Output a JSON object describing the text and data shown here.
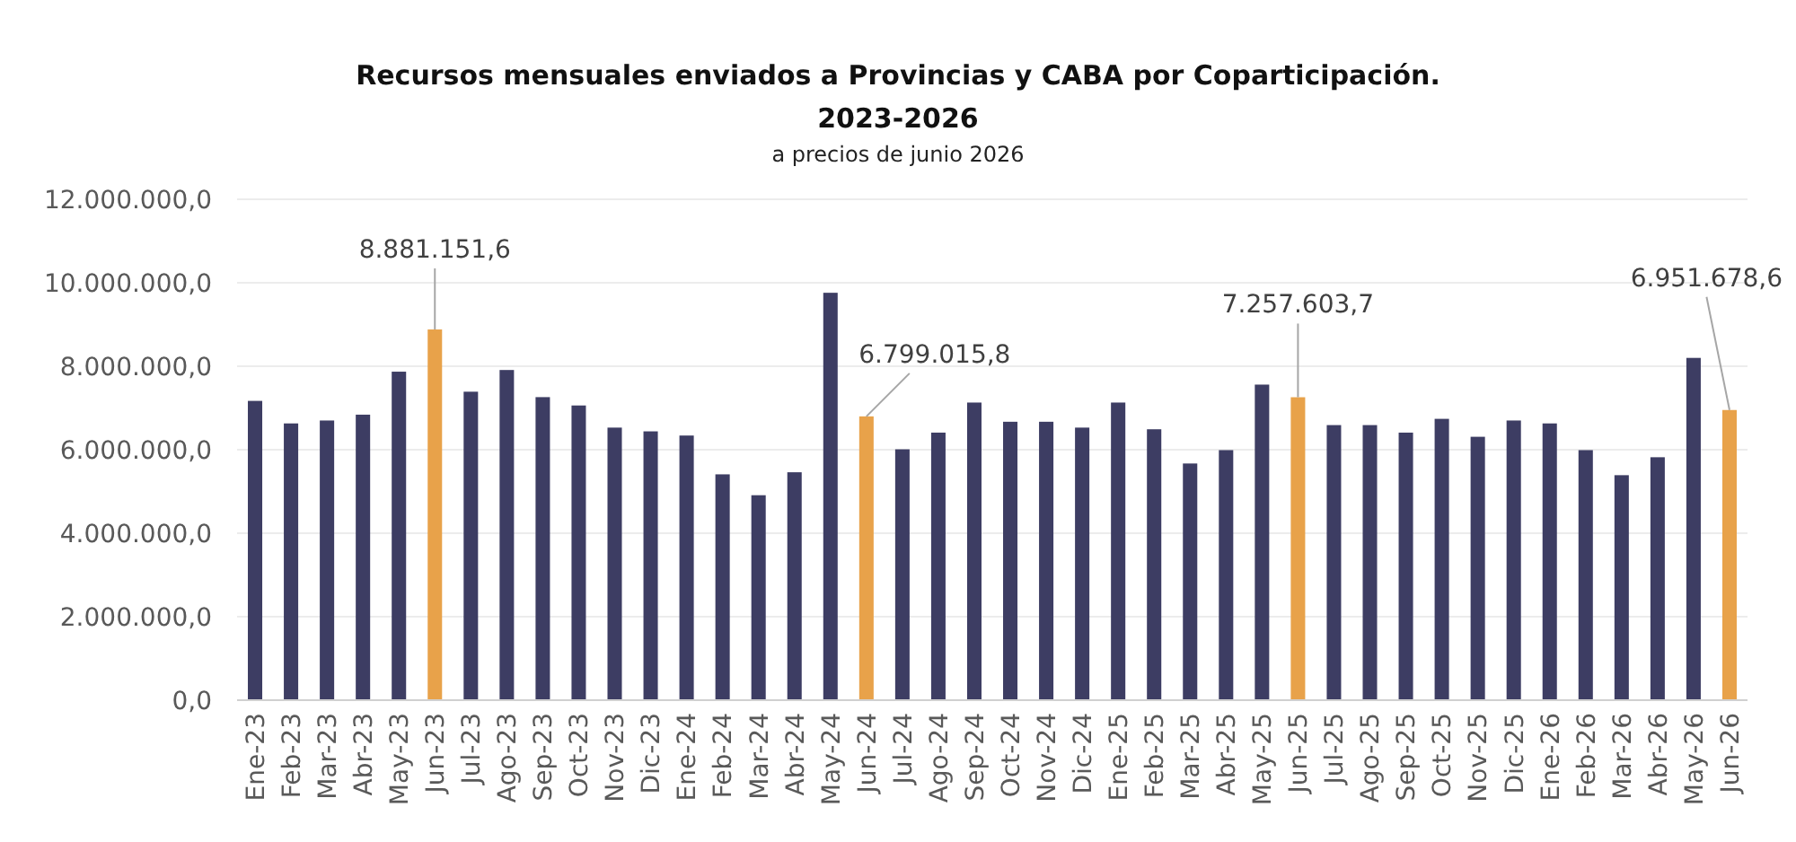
{
  "chart_data": {
    "type": "bar",
    "title": "Recursos mensuales enviados a Provincias y CABA por Coparticipación.\n2023-2026",
    "subtitle": "a precios de junio 2026",
    "categories": [
      "Ene-23",
      "Feb-23",
      "Mar-23",
      "Abr-23",
      "May-23",
      "Jun-23",
      "Jul-23",
      "Ago-23",
      "Sep-23",
      "Oct-23",
      "Nov-23",
      "Dic-23",
      "Ene-24",
      "Feb-24",
      "Mar-24",
      "Abr-24",
      "May-24",
      "Jun-24",
      "Jul-24",
      "Ago-24",
      "Sep-24",
      "Oct-24",
      "Nov-24",
      "Dic-24",
      "Ene-25",
      "Feb-25",
      "Mar-25",
      "Abr-25",
      "May-25",
      "Jun-25",
      "Jul-25",
      "Ago-25",
      "Sep-25",
      "Oct-25",
      "Nov-25",
      "Dic-25",
      "Ene-26",
      "Feb-26",
      "Mar-26",
      "Abr-26",
      "May-26",
      "Jun-26"
    ],
    "values": [
      7170000,
      6630000,
      6700000,
      6840000,
      7870000,
      8881151.6,
      7390000,
      7910000,
      7260000,
      7060000,
      6530000,
      6440000,
      6340000,
      5410000,
      4910000,
      5460000,
      9760000,
      6799015.8,
      6010000,
      6410000,
      7130000,
      6670000,
      6670000,
      6530000,
      7130000,
      6490000,
      5670000,
      5990000,
      7560000,
      7257603.7,
      6590000,
      6590000,
      6410000,
      6740000,
      6310000,
      6700000,
      6630000,
      5990000,
      5390000,
      5820000,
      8200000,
      6951678.6
    ],
    "colors": [
      "#3d3d63",
      "#3d3d63",
      "#3d3d63",
      "#3d3d63",
      "#3d3d63",
      "#e8a24a",
      "#3d3d63",
      "#3d3d63",
      "#3d3d63",
      "#3d3d63",
      "#3d3d63",
      "#3d3d63",
      "#3d3d63",
      "#3d3d63",
      "#3d3d63",
      "#3d3d63",
      "#3d3d63",
      "#e8a24a",
      "#3d3d63",
      "#3d3d63",
      "#3d3d63",
      "#3d3d63",
      "#3d3d63",
      "#3d3d63",
      "#3d3d63",
      "#3d3d63",
      "#3d3d63",
      "#3d3d63",
      "#3d3d63",
      "#e8a24a",
      "#3d3d63",
      "#3d3d63",
      "#3d3d63",
      "#3d3d63",
      "#3d3d63",
      "#3d3d63",
      "#3d3d63",
      "#3d3d63",
      "#3d3d63",
      "#3d3d63",
      "#3d3d63",
      "#e8a24a"
    ],
    "value_labels": [
      null,
      null,
      null,
      null,
      null,
      "8.881.151,6",
      null,
      null,
      null,
      null,
      null,
      null,
      null,
      null,
      null,
      null,
      null,
      "6.799.015,8",
      null,
      null,
      null,
      null,
      null,
      null,
      null,
      null,
      null,
      null,
      null,
      "7.257.603,7",
      null,
      null,
      null,
      null,
      null,
      null,
      null,
      null,
      null,
      null,
      null,
      "6.951.678,6"
    ],
    "ylim": [
      0,
      12000000
    ],
    "yticks": [
      {
        "value": 0,
        "label": "0,0"
      },
      {
        "value": 2000000,
        "label": "2.000.000,0"
      },
      {
        "value": 4000000,
        "label": "4.000.000,0"
      },
      {
        "value": 6000000,
        "label": "6.000.000,0"
      },
      {
        "value": 8000000,
        "label": "8.000.000,0"
      },
      {
        "value": 10000000,
        "label": "10.000.000,0"
      },
      {
        "value": 12000000,
        "label": "12.000.000,0"
      }
    ],
    "grid": "y"
  }
}
